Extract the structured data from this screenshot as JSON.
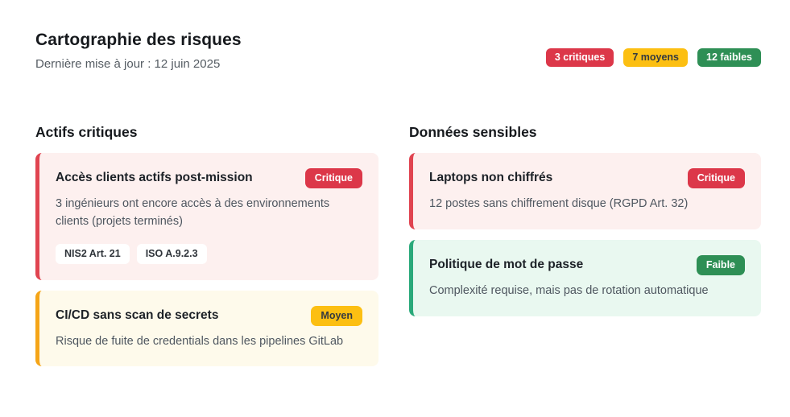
{
  "header": {
    "title": "Cartographie des risques",
    "last_updated": "Dernière mise à jour : 12 juin 2025"
  },
  "summary": {
    "badges": [
      {
        "label": "3 critiques",
        "severity": "critique",
        "color": "#dc3749"
      },
      {
        "label": "7 moyens",
        "severity": "moyen",
        "color": "#fcbf12"
      },
      {
        "label": "12 faibles",
        "severity": "faible",
        "color": "#2e8f55"
      }
    ]
  },
  "columns": [
    {
      "heading": "Actifs critiques",
      "cards": [
        {
          "title": "Accès clients actifs post-mission",
          "severity": "Critique",
          "description": "3 ingénieurs ont encore accès à des environnements clients (projets terminés)",
          "tags": [
            "NIS2 Art. 21",
            "ISO A.9.2.3"
          ]
        },
        {
          "title": "CI/CD sans scan de secrets",
          "severity": "Moyen",
          "description": "Risque de fuite de credentials dans les pipelines GitLab",
          "tags": []
        }
      ]
    },
    {
      "heading": "Données sensibles",
      "cards": [
        {
          "title": "Laptops non chiffrés",
          "severity": "Critique",
          "description": "12 postes sans chiffrement disque (RGPD Art. 32)",
          "tags": []
        },
        {
          "title": "Politique de mot de passe",
          "severity": "Faible",
          "description": "Complexité requise, mais pas de rotation automatique",
          "tags": []
        }
      ]
    }
  ],
  "colors": {
    "card_critical_bg": "#fdf0ef",
    "card_critical_border": "#e04450",
    "card_medium_bg": "#fefaeb",
    "card_medium_border": "#f5a518",
    "card_low_bg": "#e9f8f0",
    "card_low_border": "#2aa97a",
    "badge_critical": "#dc3749",
    "badge_medium": "#fcbf12",
    "badge_low": "#2e8f55",
    "text_primary": "#16191d",
    "text_secondary": "#555c63"
  }
}
